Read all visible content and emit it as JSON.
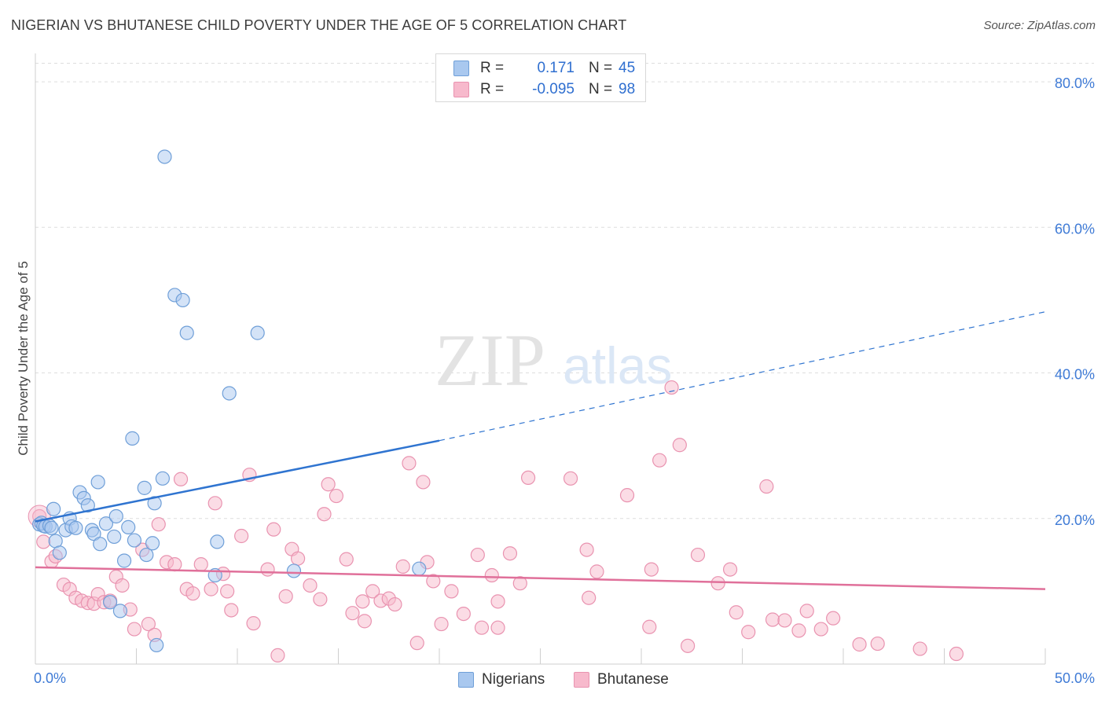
{
  "header": {
    "title": "NIGERIAN VS BHUTANESE CHILD POVERTY UNDER THE AGE OF 5 CORRELATION CHART",
    "source": "Source: ZipAtlas.com"
  },
  "watermark": {
    "zip": "ZIP",
    "atlas": "atlas"
  },
  "colors": {
    "nigerian_fill": "#a9c8ef",
    "nigerian_stroke": "#6f9fd8",
    "nigerian_line": "#2f74d0",
    "bhutanese_fill": "#f7b9cc",
    "bhutanese_stroke": "#e993b0",
    "bhutanese_line": "#e0709a",
    "axis_text": "#3f7bd6",
    "grid": "#dddddd"
  },
  "legend": {
    "rows": [
      {
        "r_label": "R =",
        "r_value": "0.171",
        "n_label": "N =",
        "n_value": "45"
      },
      {
        "r_label": "R =",
        "r_value": "-0.095",
        "n_label": "N =",
        "n_value": "98"
      }
    ]
  },
  "bottom_legend": [
    "Nigerians",
    "Bhutanese"
  ],
  "chart_data": {
    "type": "scatter",
    "title": "NIGERIAN VS BHUTANESE CHILD POVERTY UNDER THE AGE OF 5 CORRELATION CHART",
    "xlabel": "",
    "ylabel": "Child Poverty Under the Age of 5",
    "xlim": [
      0,
      50
    ],
    "ylim": [
      0,
      80
    ],
    "x_tick_labels": [
      "0.0%",
      "50.0%"
    ],
    "y_tick_labels": [
      "20.0%",
      "40.0%",
      "60.0%",
      "80.0%"
    ],
    "y_ticks": [
      20,
      40,
      60,
      80
    ],
    "grid": true,
    "legend_position": "top-center",
    "series": [
      {
        "name": "Nigerians",
        "r": 0.171,
        "n": 45,
        "trend": {
          "x0": 0,
          "y0": 19.6,
          "x1": 20,
          "y1": 30.7,
          "x_dash_end": 50,
          "y_dash_end": 48.4
        },
        "points": [
          [
            0.2,
            19.2
          ],
          [
            0.3,
            19.4
          ],
          [
            0.4,
            19.0
          ],
          [
            0.5,
            18.9
          ],
          [
            0.7,
            19.0
          ],
          [
            0.8,
            18.7
          ],
          [
            0.9,
            21.3
          ],
          [
            1.0,
            16.9
          ],
          [
            1.2,
            15.3
          ],
          [
            1.5,
            18.4
          ],
          [
            1.7,
            20.0
          ],
          [
            1.8,
            18.9
          ],
          [
            2.0,
            18.7
          ],
          [
            2.2,
            23.6
          ],
          [
            2.4,
            22.8
          ],
          [
            2.6,
            21.8
          ],
          [
            2.8,
            18.4
          ],
          [
            2.9,
            17.9
          ],
          [
            3.2,
            16.5
          ],
          [
            3.1,
            25.0
          ],
          [
            3.5,
            19.3
          ],
          [
            3.7,
            8.5
          ],
          [
            3.9,
            17.5
          ],
          [
            4.0,
            20.3
          ],
          [
            4.2,
            7.3
          ],
          [
            4.4,
            14.2
          ],
          [
            4.6,
            18.8
          ],
          [
            4.8,
            31.0
          ],
          [
            4.9,
            17.0
          ],
          [
            5.4,
            24.2
          ],
          [
            5.5,
            15.0
          ],
          [
            5.8,
            16.6
          ],
          [
            5.9,
            22.1
          ],
          [
            6.0,
            2.6
          ],
          [
            6.3,
            25.5
          ],
          [
            6.4,
            69.7
          ],
          [
            6.9,
            50.7
          ],
          [
            7.3,
            50.0
          ],
          [
            7.5,
            45.5
          ],
          [
            8.9,
            12.2
          ],
          [
            9.0,
            16.8
          ],
          [
            9.6,
            37.2
          ],
          [
            11.0,
            45.5
          ],
          [
            12.8,
            12.8
          ],
          [
            19.0,
            13.1
          ]
        ]
      },
      {
        "name": "Bhutanese",
        "r": -0.095,
        "n": 98,
        "trend": {
          "x0": 0,
          "y0": 13.3,
          "x1": 50,
          "y1": 10.3
        },
        "points": [
          [
            0.2,
            20.3
          ],
          [
            0.4,
            16.8
          ],
          [
            0.8,
            14.1
          ],
          [
            1.0,
            14.8
          ],
          [
            1.4,
            10.9
          ],
          [
            1.7,
            10.3
          ],
          [
            2.0,
            9.1
          ],
          [
            2.3,
            8.7
          ],
          [
            2.6,
            8.4
          ],
          [
            2.9,
            8.3
          ],
          [
            3.1,
            9.6
          ],
          [
            3.4,
            8.5
          ],
          [
            3.7,
            8.7
          ],
          [
            4.0,
            12.0
          ],
          [
            4.3,
            10.8
          ],
          [
            4.7,
            7.5
          ],
          [
            4.9,
            4.8
          ],
          [
            5.3,
            15.7
          ],
          [
            5.6,
            5.5
          ],
          [
            5.9,
            4.0
          ],
          [
            6.1,
            19.2
          ],
          [
            6.5,
            14.0
          ],
          [
            6.9,
            13.7
          ],
          [
            7.2,
            25.4
          ],
          [
            7.5,
            10.3
          ],
          [
            7.8,
            9.7
          ],
          [
            8.2,
            13.7
          ],
          [
            8.7,
            10.3
          ],
          [
            8.9,
            22.1
          ],
          [
            9.3,
            12.4
          ],
          [
            9.5,
            10.0
          ],
          [
            9.7,
            7.4
          ],
          [
            10.2,
            17.6
          ],
          [
            10.6,
            26.0
          ],
          [
            10.8,
            5.6
          ],
          [
            11.5,
            13.0
          ],
          [
            11.8,
            18.5
          ],
          [
            12.0,
            1.2
          ],
          [
            12.4,
            9.3
          ],
          [
            12.7,
            15.8
          ],
          [
            13.0,
            14.5
          ],
          [
            13.6,
            10.8
          ],
          [
            14.1,
            8.9
          ],
          [
            14.3,
            20.6
          ],
          [
            14.5,
            24.7
          ],
          [
            14.9,
            23.1
          ],
          [
            15.4,
            14.4
          ],
          [
            15.7,
            7.0
          ],
          [
            16.2,
            8.6
          ],
          [
            16.3,
            5.9
          ],
          [
            16.7,
            10.0
          ],
          [
            17.1,
            8.7
          ],
          [
            17.5,
            9.0
          ],
          [
            17.8,
            8.2
          ],
          [
            18.2,
            13.4
          ],
          [
            18.5,
            27.6
          ],
          [
            18.9,
            2.9
          ],
          [
            19.2,
            25.0
          ],
          [
            19.4,
            14.0
          ],
          [
            19.7,
            11.4
          ],
          [
            20.1,
            5.5
          ],
          [
            20.6,
            10.0
          ],
          [
            21.2,
            6.9
          ],
          [
            21.9,
            15.0
          ],
          [
            22.1,
            5.0
          ],
          [
            22.6,
            12.2
          ],
          [
            22.9,
            5.0
          ],
          [
            23.5,
            15.2
          ],
          [
            22.9,
            8.6
          ],
          [
            24.0,
            11.1
          ],
          [
            24.4,
            25.6
          ],
          [
            26.5,
            25.5
          ],
          [
            27.3,
            15.7
          ],
          [
            27.4,
            9.1
          ],
          [
            27.8,
            12.7
          ],
          [
            29.3,
            23.2
          ],
          [
            30.5,
            13.0
          ],
          [
            30.4,
            5.1
          ],
          [
            30.9,
            28.0
          ],
          [
            31.5,
            38.0
          ],
          [
            31.9,
            30.1
          ],
          [
            32.3,
            2.5
          ],
          [
            32.8,
            15.0
          ],
          [
            33.8,
            11.1
          ],
          [
            34.4,
            13.0
          ],
          [
            34.7,
            7.1
          ],
          [
            35.3,
            4.4
          ],
          [
            36.2,
            24.4
          ],
          [
            36.5,
            6.1
          ],
          [
            37.1,
            6.0
          ],
          [
            37.8,
            4.6
          ],
          [
            38.2,
            7.3
          ],
          [
            38.9,
            4.8
          ],
          [
            39.5,
            6.3
          ],
          [
            40.8,
            2.7
          ],
          [
            41.7,
            2.8
          ],
          [
            43.8,
            2.1
          ],
          [
            45.6,
            1.4
          ]
        ]
      }
    ]
  }
}
